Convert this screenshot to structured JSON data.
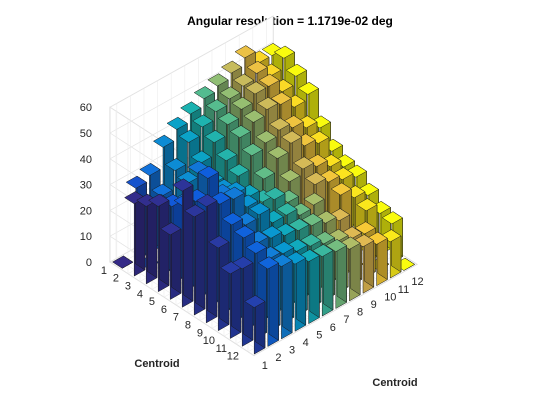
{
  "chart_data": {
    "type": "bar3",
    "title": "Angular resolution =   1.1719e-02 deg",
    "x_axis_label": "Centroid",
    "y_axis_label": "Centroid",
    "x_ticks": [
      "1",
      "2",
      "3",
      "4",
      "5",
      "6",
      "7",
      "8",
      "9",
      "10",
      "11",
      "12"
    ],
    "y_ticks": [
      "1",
      "2",
      "3",
      "4",
      "5",
      "6",
      "7",
      "8",
      "9",
      "10",
      "11",
      "12"
    ],
    "z_ticks": [
      "0",
      "10",
      "20",
      "30",
      "40",
      "50",
      "60"
    ],
    "zlim": [
      0,
      60
    ],
    "colormap": "parula",
    "grid": true,
    "values_by_row": [
      [
        0,
        28,
        30,
        38,
        42,
        45,
        48,
        50,
        52,
        55,
        50,
        50
      ],
      [
        28,
        0,
        25,
        32,
        40,
        43,
        46,
        48,
        50,
        52,
        48,
        52
      ],
      [
        30,
        27,
        0,
        30,
        35,
        40,
        44,
        47,
        50,
        50,
        45,
        48
      ],
      [
        33,
        30,
        28,
        0,
        30,
        36,
        42,
        45,
        47,
        46,
        42,
        44
      ],
      [
        25,
        33,
        43,
        33,
        0,
        33,
        38,
        40,
        42,
        40,
        37,
        34
      ],
      [
        45,
        38,
        32,
        36,
        31,
        0,
        32,
        37,
        40,
        36,
        34,
        28
      ],
      [
        38,
        50,
        40,
        38,
        34,
        29,
        0,
        31,
        33,
        31,
        28,
        25
      ],
      [
        45,
        43,
        42,
        36,
        28,
        33,
        29,
        0,
        30,
        28,
        26,
        24
      ],
      [
        32,
        38,
        35,
        36,
        30,
        30,
        27,
        28,
        0,
        26,
        22,
        20
      ],
      [
        25,
        36,
        31,
        30,
        28,
        27,
        26,
        24,
        22,
        0,
        20,
        16
      ],
      [
        30,
        33,
        28,
        27,
        25,
        24,
        22,
        20,
        18,
        17,
        0,
        15
      ],
      [
        18,
        30,
        28,
        26,
        24,
        23,
        22,
        20,
        18,
        16,
        14,
        0
      ]
    ]
  }
}
